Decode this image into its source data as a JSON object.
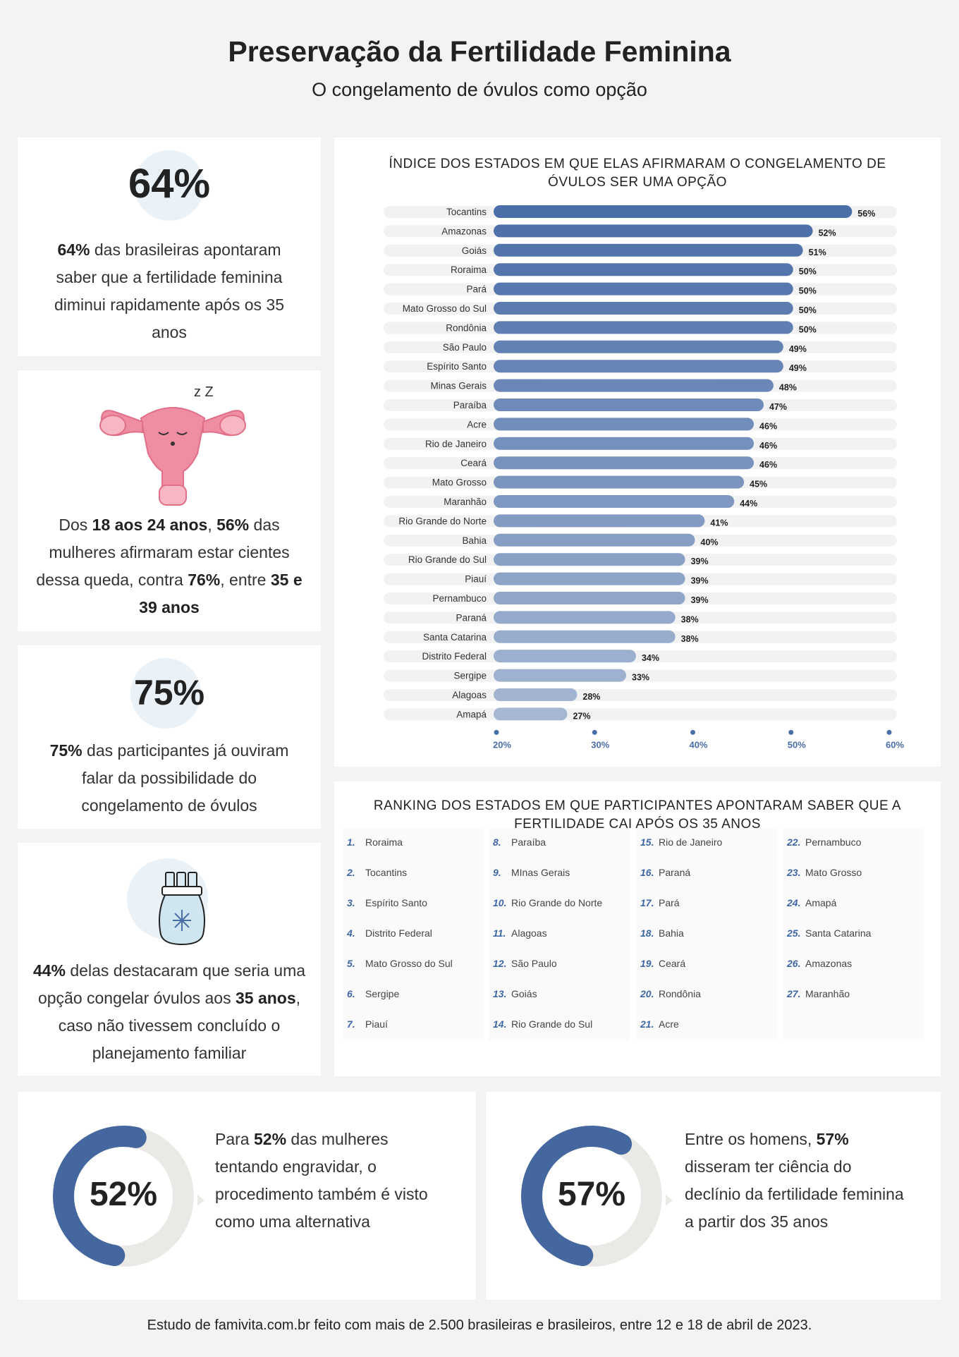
{
  "header": {
    "title": "Preservação da Fertilidade Feminina",
    "subtitle": "O congelamento de óvulos como opção"
  },
  "stat1": {
    "big": "64%",
    "p1_bold": "64%",
    "p1_text": " das brasileiras apontaram saber que a fertilidade feminina diminui rapidamente após os 35 anos"
  },
  "stat2": {
    "sleep_mark": "z Z",
    "t1": "Dos ",
    "b1": "18 aos 24 anos",
    "t2": ", ",
    "b2": "56%",
    "t3": " das mulheres afirmaram estar cientes dessa queda, contra ",
    "b3": "76%",
    "t4": ", entre ",
    "b4": "35 e 39 anos"
  },
  "stat3": {
    "big": "75%",
    "bold": "75%",
    "text": " das participantes já ouviram falar da possibilidade do congelamento de óvulos"
  },
  "stat4": {
    "b1": "44%",
    "t1": " delas destacaram que seria uma opção congelar óvulos aos ",
    "b2": "35 anos",
    "t2": ", caso não tivessem concluído o planejamento familiar"
  },
  "chart_data": {
    "type": "bar",
    "orientation": "horizontal",
    "title": "ÍNDICE DOS ESTADOS EM QUE ELAS AFIRMARAM O CONGELAMENTO DE ÓVULOS SER UMA OPÇÃO",
    "categories": [
      "Tocantins",
      "Amazonas",
      "Goiás",
      "Roraima",
      "Pará",
      "Mato Grosso do Sul",
      "Rondônia",
      "São Paulo",
      "Espírito Santo",
      "Minas Gerais",
      "Paraíba",
      "Acre",
      "Rio de Janeiro",
      "Ceará",
      "Mato Grosso",
      "Maranhão",
      "Rio Grande do Norte",
      "Bahia",
      "Rio Grande do Sul",
      "Piauí",
      "Pernambuco",
      "Paraná",
      "Santa Catarina",
      "Distrito Federal",
      "Sergipe",
      "Alagoas",
      "Amapá"
    ],
    "values": [
      56,
      52,
      51,
      50,
      50,
      50,
      50,
      49,
      49,
      48,
      47,
      46,
      46,
      46,
      45,
      44,
      41,
      40,
      39,
      39,
      39,
      38,
      38,
      34,
      33,
      28,
      27
    ],
    "value_labels": [
      "56%",
      "52%",
      "51%",
      "50%",
      "50%",
      "50%",
      "50%",
      "49%",
      "49%",
      "48%",
      "47%",
      "46%",
      "46%",
      "46%",
      "45%",
      "44%",
      "41%",
      "40%",
      "39%",
      "39%",
      "39%",
      "38%",
      "38%",
      "34%",
      "33%",
      "28%",
      "27%"
    ],
    "xlim": [
      20,
      60
    ],
    "x_ticks": [
      "20%",
      "30%",
      "40%",
      "50%",
      "60%"
    ],
    "bar_color_start": "#4a6ea8",
    "bar_color_end": "#a6b7d3",
    "track_color": "#f2f2f2"
  },
  "ranking": {
    "title": "RANKING DOS ESTADOS EM QUE PARTICIPANTES APONTARAM SABER QUE A FERTILIDADE CAI APÓS OS 35 ANOS",
    "columns": [
      [
        {
          "n": "1.",
          "s": "Roraima"
        },
        {
          "n": "2.",
          "s": "Tocantins"
        },
        {
          "n": "3.",
          "s": "Espírito Santo"
        },
        {
          "n": "4.",
          "s": "Distrito Federal"
        },
        {
          "n": "5.",
          "s": "Mato Grosso do Sul"
        },
        {
          "n": "6.",
          "s": "Sergipe"
        },
        {
          "n": "7.",
          "s": "Piauí"
        }
      ],
      [
        {
          "n": "8.",
          "s": "Paraíba"
        },
        {
          "n": "9.",
          "s": "MInas Gerais"
        },
        {
          "n": "10.",
          "s": "Rio Grande do Norte"
        },
        {
          "n": "11.",
          "s": "Alagoas"
        },
        {
          "n": "12.",
          "s": "São Paulo"
        },
        {
          "n": "13.",
          "s": "Goiás"
        },
        {
          "n": "14.",
          "s": "Rio Grande do Sul"
        }
      ],
      [
        {
          "n": "15.",
          "s": "Rio de Janeiro"
        },
        {
          "n": "16.",
          "s": "Paraná"
        },
        {
          "n": "17.",
          "s": "Pará"
        },
        {
          "n": "18.",
          "s": "Bahia"
        },
        {
          "n": "19.",
          "s": "Ceará"
        },
        {
          "n": "20.",
          "s": "Rondônia"
        },
        {
          "n": "21.",
          "s": "Acre"
        }
      ],
      [
        {
          "n": "22.",
          "s": "Pernambuco"
        },
        {
          "n": "23.",
          "s": "Mato Grosso"
        },
        {
          "n": "24.",
          "s": "Amapá"
        },
        {
          "n": "25.",
          "s": "Santa Catarina"
        },
        {
          "n": "26.",
          "s": "Amazonas"
        },
        {
          "n": "27.",
          "s": "Maranhão"
        }
      ]
    ]
  },
  "donut1": {
    "label": "52%",
    "fraction": 0.52,
    "t1": "Para ",
    "b1": "52%",
    "t2": " das mulheres tentando engravidar, o procedimento também é visto como uma alternativa"
  },
  "donut2": {
    "label": "57%",
    "fraction": 0.57,
    "t1": "Entre os homens, ",
    "b1": "57%",
    "t2": " disseram ter ciência do declínio da fertilidade feminina a partir dos 35 anos"
  },
  "colors": {
    "accent": "#44679f",
    "donut_track": "#ebe9e6",
    "pink": "#ef8da2"
  },
  "footer": "Estudo de famivita.com.br feito com mais de 2.500 brasileiras e brasileiros, entre 12 e 18  de abril de 2023."
}
